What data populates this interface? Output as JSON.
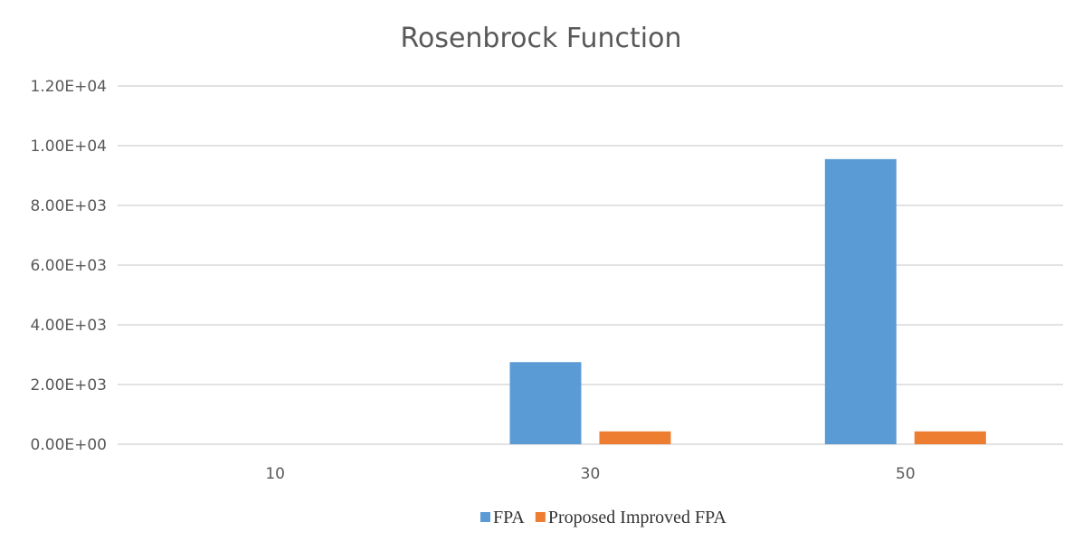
{
  "chart_data": {
    "type": "bar",
    "title": "Rosenbrock Function",
    "xlabel": "",
    "ylabel": "",
    "categories": [
      "10",
      "30",
      "50"
    ],
    "series": [
      {
        "name": "FPA",
        "values": [
          0,
          2750,
          9550
        ],
        "color": "#5b9bd5"
      },
      {
        "name": "Proposed Improved FPA",
        "values": [
          0,
          430,
          430
        ],
        "color": "#ed7d31"
      }
    ],
    "ylim": [
      0,
      12000
    ],
    "yticks": [
      "0.00E+00",
      "2.00E+03",
      "4.00E+03",
      "6.00E+03",
      "8.00E+03",
      "1.00E+04",
      "1.20E+04"
    ],
    "ytick_values": [
      0,
      2000,
      4000,
      6000,
      8000,
      10000,
      12000
    ],
    "grid": true,
    "legend_position": "bottom"
  }
}
